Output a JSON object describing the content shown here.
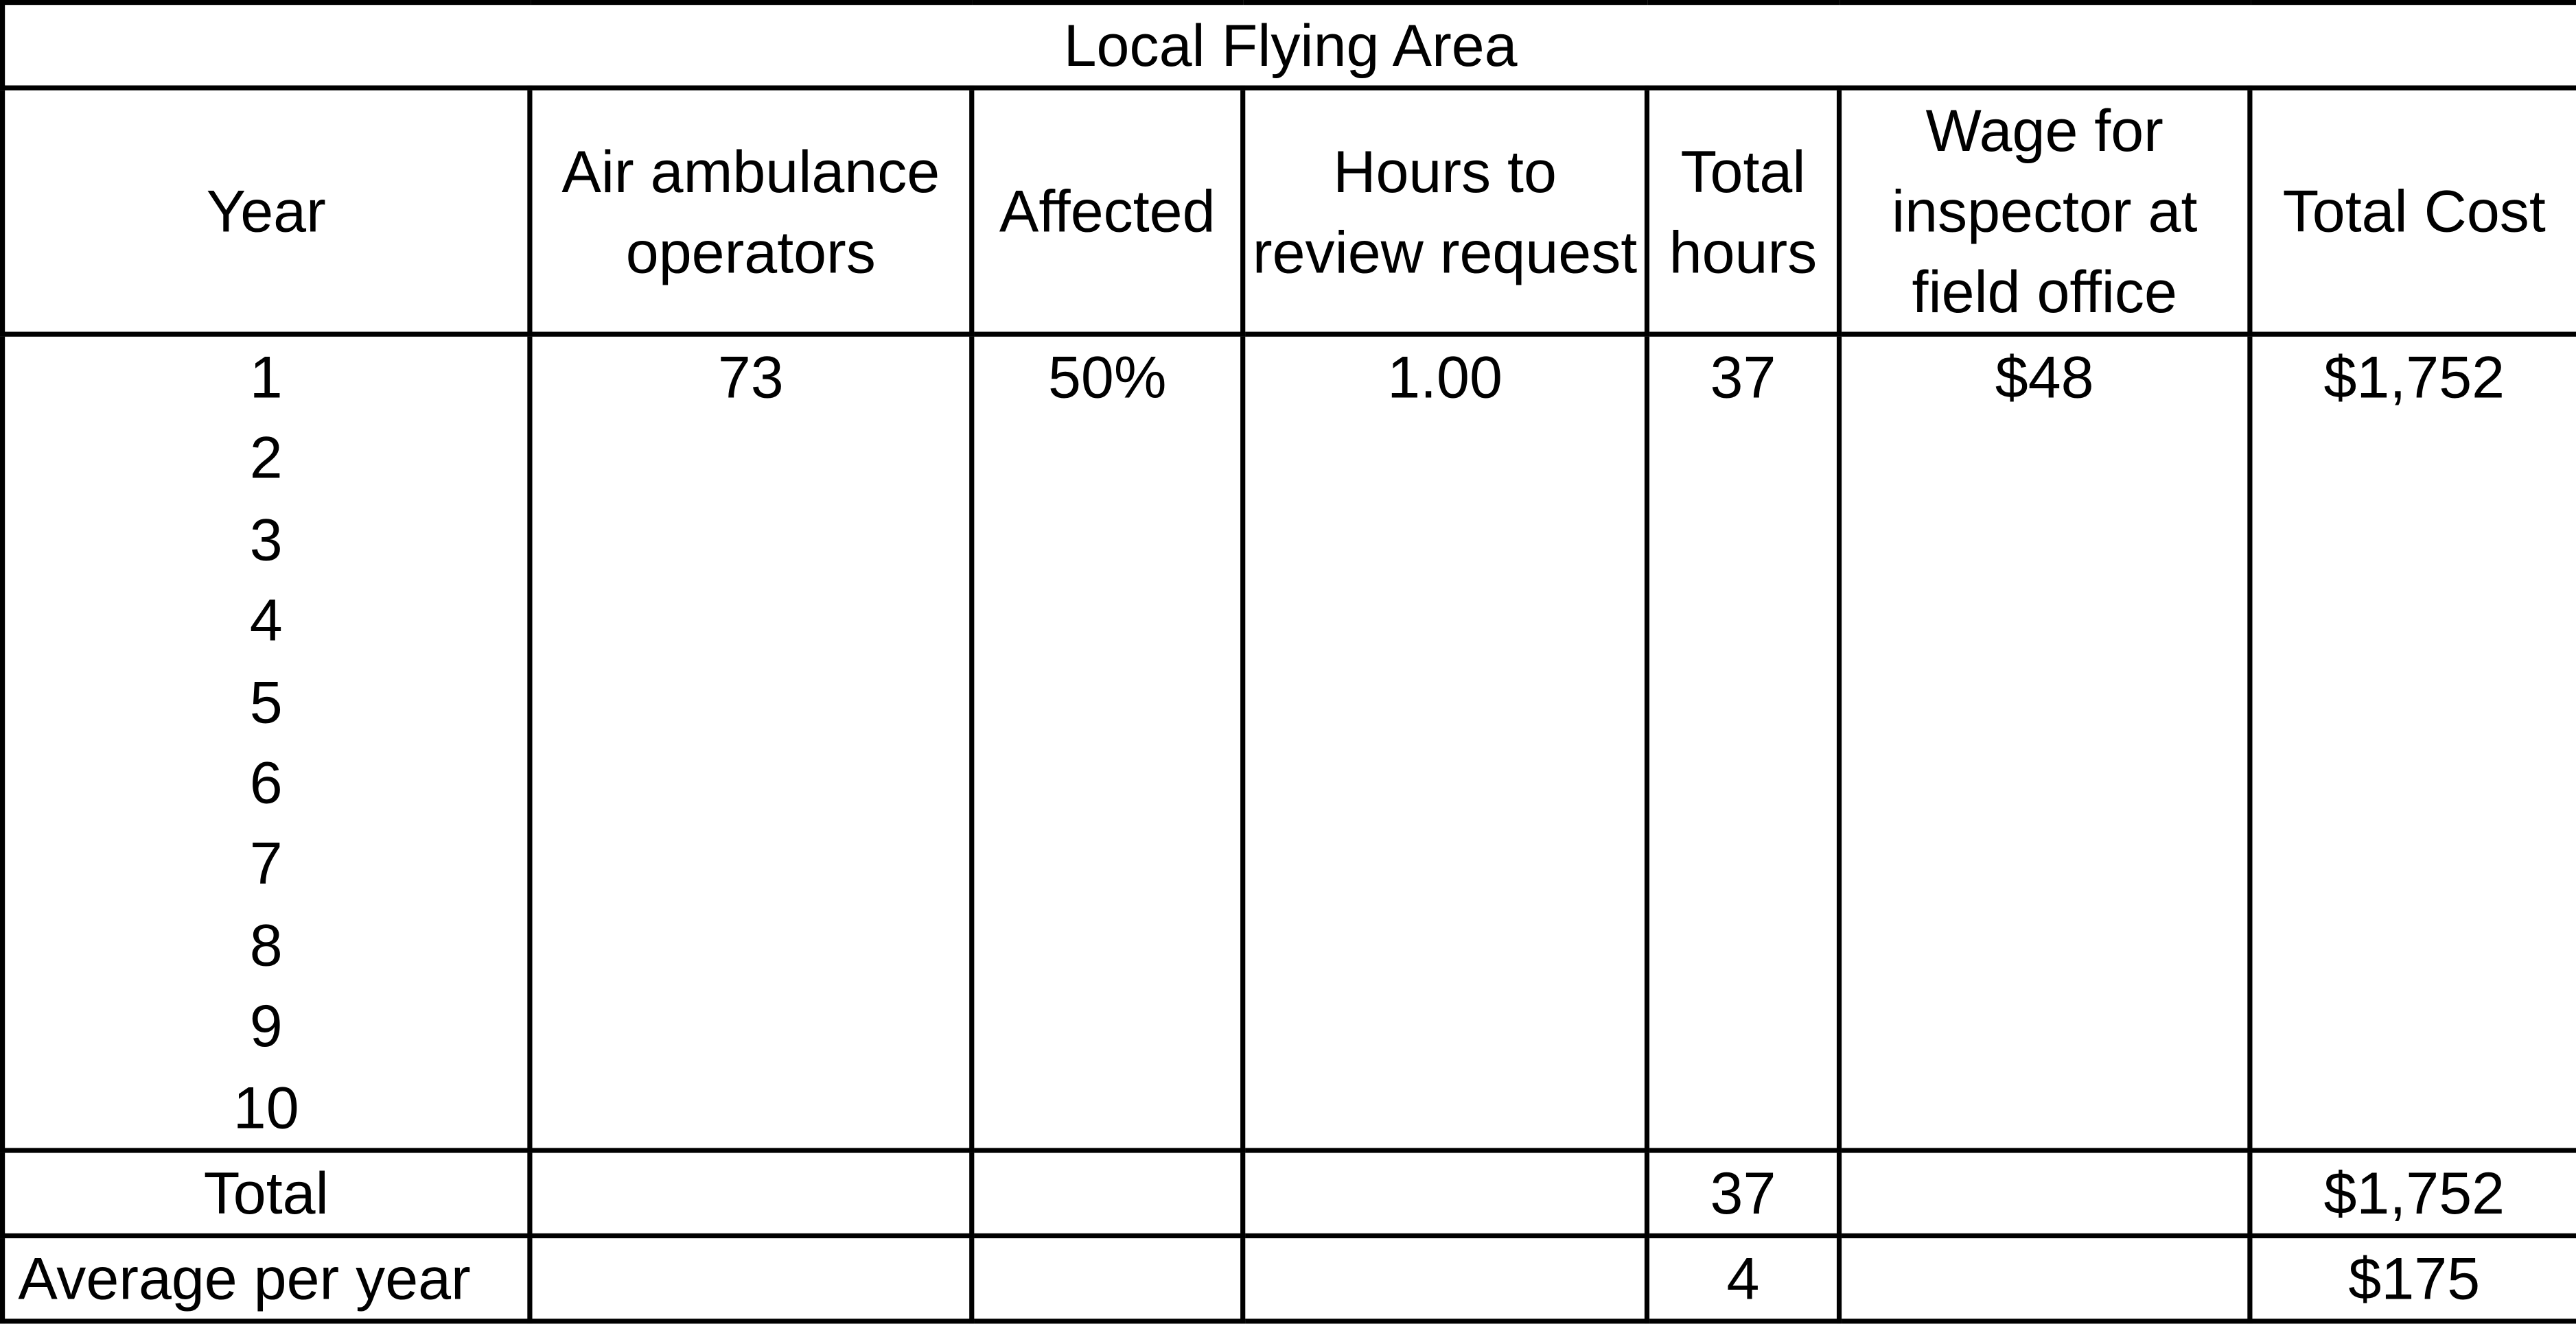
{
  "title": "Local Flying Area",
  "headers": {
    "year": "Year",
    "operators": "Air ambulance operators",
    "affected": "Affected",
    "hours_review": "Hours to review request",
    "total_hours": "Total hours",
    "wage": "Wage for inspector at field office",
    "total_cost": "Total Cost"
  },
  "years": [
    "1",
    "2",
    "3",
    "4",
    "5",
    "6",
    "7",
    "8",
    "9",
    "10"
  ],
  "row": {
    "operators": "73",
    "affected": "50%",
    "hours_review": "1.00",
    "total_hours": "37",
    "wage": "$48",
    "total_cost": "$1,752"
  },
  "total_row": {
    "label": "Total",
    "total_hours": "37",
    "total_cost": "$1,752"
  },
  "average_row": {
    "label": "Average per year",
    "total_hours": "4",
    "total_cost": "$175"
  }
}
